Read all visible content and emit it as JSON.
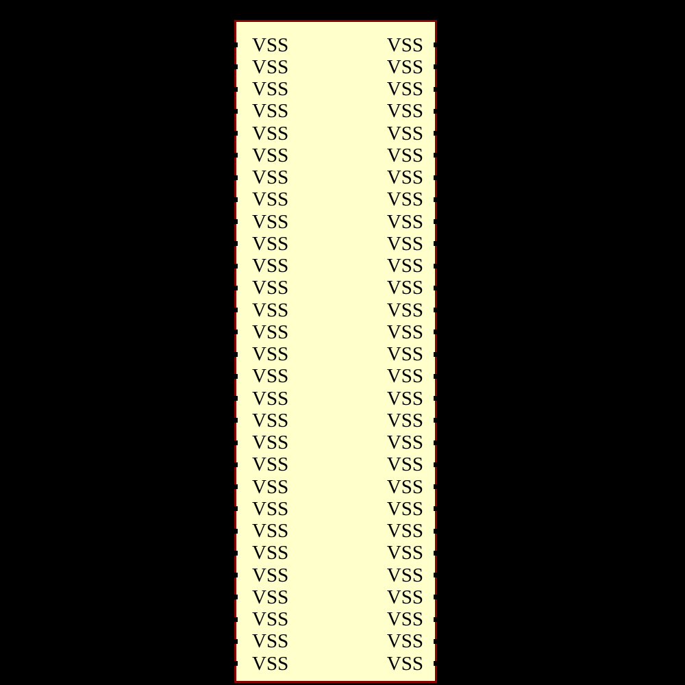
{
  "background_color": "#000000",
  "component": {
    "body_fill": "#FFFFCC",
    "body_border_color": "#8B0000",
    "pin_tick_color": "#000000",
    "label_color": "#000000",
    "left_pins": [
      "VSS",
      "VSS",
      "VSS",
      "VSS",
      "VSS",
      "VSS",
      "VSS",
      "VSS",
      "VSS",
      "VSS",
      "VSS",
      "VSS",
      "VSS",
      "VSS",
      "VSS",
      "VSS",
      "VSS",
      "VSS",
      "VSS",
      "VSS",
      "VSS",
      "VSS",
      "VSS",
      "VSS",
      "VSS",
      "VSS",
      "VSS",
      "VSS",
      "VSS"
    ],
    "right_pins": [
      "VSS",
      "VSS",
      "VSS",
      "VSS",
      "VSS",
      "VSS",
      "VSS",
      "VSS",
      "VSS",
      "VSS",
      "VSS",
      "VSS",
      "VSS",
      "VSS",
      "VSS",
      "VSS",
      "VSS",
      "VSS",
      "VSS",
      "VSS",
      "VSS",
      "VSS",
      "VSS",
      "VSS",
      "VSS",
      "VSS",
      "VSS",
      "VSS",
      "VSS"
    ]
  }
}
